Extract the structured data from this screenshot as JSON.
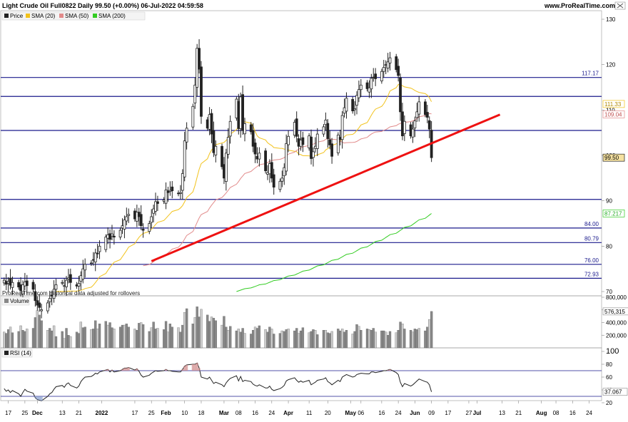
{
  "header": {
    "title": "Light Crude Oil Full0822 Daily 99.50 (+0.00%) 06-Jul-2022 04:59:58",
    "site": "www.ProRealTime.com"
  },
  "legend": {
    "price": "Price",
    "sma20": "SMA (20)",
    "sma50": "SMA (50)",
    "sma200": "SMA (200)"
  },
  "note": "ProRealTime.com Historical data adjusted for rollovers",
  "volume_label": "Volume",
  "rsi_label": "RSI (14)",
  "colors": {
    "candle": "#222222",
    "sma20": "#f2c21b",
    "sma50": "#e28b8b",
    "sma200": "#33cc22",
    "hline": "#1a1a8c",
    "trendline": "#ee1111",
    "volume": "#888888"
  },
  "chart_data": {
    "type": "candlestick",
    "price_axis": {
      "min": 70,
      "max": 130,
      "ticks": [
        70,
        80,
        90,
        100,
        110,
        120,
        130
      ]
    },
    "last_price": "99.50",
    "sma_values": {
      "sma20": "111.33",
      "sma50": "109.04",
      "sma200": "87.217"
    },
    "horizontal_levels": [
      {
        "value": 117.17,
        "label": "117.17"
      },
      {
        "value": 113.0,
        "label": ""
      },
      {
        "value": 105.5,
        "label": ""
      },
      {
        "value": 90.3,
        "label": ""
      },
      {
        "value": 84.0,
        "label": "84.00"
      },
      {
        "value": 80.79,
        "label": "80.79"
      },
      {
        "value": 76.0,
        "label": "76.00"
      },
      {
        "value": 72.93,
        "label": "72.93"
      }
    ],
    "trendline": {
      "from": {
        "x": "2022-01-25",
        "y": 76.7
      },
      "to": {
        "x": "2022-07-12",
        "y": 109.0
      }
    },
    "x_axis": {
      "start": "2021-11-13",
      "end": "2022-08-30",
      "ticks": [
        {
          "date": "2021-11-17",
          "label": "17"
        },
        {
          "date": "2021-11-25",
          "label": "25"
        },
        {
          "date": "2021-12-01",
          "label": "Dec"
        },
        {
          "date": "2021-12-13",
          "label": "13"
        },
        {
          "date": "2021-12-21",
          "label": "21"
        },
        {
          "date": "2022-01-01",
          "label": "2022"
        },
        {
          "date": "2022-01-17",
          "label": "17"
        },
        {
          "date": "2022-01-25",
          "label": "25"
        },
        {
          "date": "2022-02-01",
          "label": "Feb"
        },
        {
          "date": "2022-02-10",
          "label": "10"
        },
        {
          "date": "2022-02-18",
          "label": "18"
        },
        {
          "date": "2022-03-01",
          "label": "Mar"
        },
        {
          "date": "2022-03-08",
          "label": "08"
        },
        {
          "date": "2022-03-16",
          "label": "16"
        },
        {
          "date": "2022-03-24",
          "label": "24"
        },
        {
          "date": "2022-04-01",
          "label": "Apr"
        },
        {
          "date": "2022-04-11",
          "label": "11"
        },
        {
          "date": "2022-04-20",
          "label": "20"
        },
        {
          "date": "2022-05-01",
          "label": "May"
        },
        {
          "date": "2022-05-06",
          "label": "06"
        },
        {
          "date": "2022-05-16",
          "label": "16"
        },
        {
          "date": "2022-05-24",
          "label": "24"
        },
        {
          "date": "2022-06-01",
          "label": "Jun"
        },
        {
          "date": "2022-06-09",
          "label": "09"
        },
        {
          "date": "2022-06-17",
          "label": "17"
        },
        {
          "date": "2022-06-27",
          "label": "27"
        },
        {
          "date": "2022-07-01",
          "label": "Jul"
        },
        {
          "date": "2022-07-13",
          "label": "13"
        },
        {
          "date": "2022-07-21",
          "label": "21"
        },
        {
          "date": "2022-08-01",
          "label": "Aug"
        },
        {
          "date": "2022-08-08",
          "label": "08"
        },
        {
          "date": "2022-08-16",
          "label": "16"
        },
        {
          "date": "2022-08-24",
          "label": "24"
        }
      ]
    },
    "closes": [
      72.5,
      71.6,
      72.2,
      71.4,
      72.0,
      71.0,
      70.2,
      71.5,
      72.1,
      71.3,
      70.5,
      68.0,
      67.0,
      66.5,
      66.0,
      67.5,
      68.5,
      69.0,
      70.5,
      71.5,
      72.0,
      71.3,
      72.5,
      73.0,
      72.0,
      71.2,
      71.8,
      73.5,
      75.0,
      76.0,
      76.3,
      77.0,
      78.5,
      78.3,
      80.0,
      82.0,
      82.5,
      81.5,
      82.7,
      82.0,
      83.5,
      84.5,
      85.8,
      86.5,
      87.0,
      86.0,
      87.5,
      86.5,
      84.5,
      83.5,
      85.0,
      86.5,
      88.2,
      89.8,
      89.4,
      90.2,
      92.4,
      91.8,
      92.3,
      92.2,
      91.6,
      91.8,
      96.0,
      103.2,
      106.0,
      110.8,
      115.5,
      123.6,
      119.0,
      108.6,
      106.0,
      109.0,
      104.7,
      100.6,
      102.0,
      97.5,
      95.0,
      100.5,
      104.0,
      107.5,
      112.4,
      105.9,
      112.9,
      105.5,
      107.0,
      105.2,
      102.0,
      100.3,
      99.2,
      100.5,
      96.6,
      96.2,
      98.2,
      95.0,
      93.0,
      94.3,
      95.0,
      97.3,
      102.6,
      104.2,
      107.3,
      104.2,
      102.0,
      103.4,
      102.4,
      104.3,
      99.3,
      100.8,
      102.0,
      104.7,
      106.3,
      107.8,
      103.7,
      102.3,
      99.8,
      104.5,
      103.5,
      108.8,
      110.5,
      112.6,
      109.8,
      110.3,
      113.2,
      114.5,
      115.5,
      114.7,
      114.9,
      117.0,
      117.2,
      116.9,
      118.5,
      119.4,
      120.0,
      120.6,
      121.5,
      118.9,
      117.6,
      109.6,
      104.3,
      107.5,
      104.3,
      105.8,
      107.6,
      109.6,
      111.8,
      109.0,
      108.4,
      105.8,
      99.5
    ],
    "rsi_axis": {
      "min": 20,
      "max": 100,
      "ticks": [
        20,
        40,
        60,
        80,
        100
      ],
      "bands": [
        70,
        30
      ]
    },
    "rsi_last": "37.067",
    "rsi": [
      42,
      38,
      40,
      36,
      39,
      34,
      30,
      36,
      41,
      38,
      35,
      28,
      25,
      24,
      23,
      30,
      34,
      36,
      41,
      45,
      47,
      44,
      49,
      51,
      47,
      43,
      46,
      53,
      57,
      60,
      61,
      63,
      66,
      65,
      68,
      71,
      72,
      68,
      71,
      68,
      70,
      72,
      74,
      74,
      75,
      71,
      73,
      69,
      63,
      60,
      63,
      66,
      68,
      70,
      69,
      70,
      72,
      70,
      70,
      69,
      68,
      68,
      72,
      77,
      79,
      80,
      80,
      82,
      74,
      60,
      57,
      60,
      55,
      50,
      52,
      48,
      45,
      51,
      55,
      58,
      62,
      54,
      61,
      53,
      55,
      53,
      49,
      47,
      46,
      48,
      43,
      43,
      46,
      41,
      39,
      42,
      44,
      47,
      54,
      56,
      59,
      55,
      52,
      54,
      52,
      55,
      48,
      50,
      52,
      55,
      57,
      59,
      53,
      51,
      48,
      55,
      53,
      60,
      62,
      64,
      60,
      61,
      64,
      65,
      66,
      65,
      65,
      68,
      68,
      67,
      69,
      70,
      70,
      71,
      72,
      67,
      64,
      52,
      45,
      50,
      46,
      48,
      51,
      54,
      57,
      53,
      52,
      48,
      37
    ],
    "volume_axis": {
      "min": 0,
      "max": 800000,
      "ticks": [
        200000,
        400000,
        600000,
        800000
      ],
      "labels": [
        "200,000",
        "400,000",
        "600,000",
        "800,000"
      ]
    },
    "volume_last": "576,315",
    "volume": [
      250000,
      230000,
      290000,
      330000,
      240000,
      260000,
      350000,
      280000,
      260000,
      300000,
      310000,
      480000,
      590000,
      520000,
      430000,
      280000,
      310000,
      270000,
      350000,
      180000,
      260000,
      150000,
      310000,
      200000,
      180000,
      250000,
      230000,
      410000,
      320000,
      330000,
      290000,
      300000,
      430000,
      300000,
      380000,
      420000,
      360000,
      400000,
      320000,
      300000,
      330000,
      360000,
      360000,
      380000,
      330000,
      300000,
      280000,
      390000,
      400000,
      370000,
      260000,
      320000,
      410000,
      300000,
      310000,
      290000,
      420000,
      250000,
      380000,
      330000,
      320000,
      250000,
      360000,
      560000,
      620000,
      380000,
      480000,
      650000,
      490000,
      610000,
      520000,
      420000,
      490000,
      470000,
      430000,
      360000,
      500000,
      330000,
      280000,
      340000,
      270000,
      300000,
      250000,
      310000,
      230000,
      220000,
      280000,
      330000,
      310000,
      350000,
      290000,
      250000,
      330000,
      300000,
      220000,
      230000,
      270000,
      260000,
      290000,
      300000,
      270000,
      310000,
      230000,
      270000,
      320000,
      240000,
      260000,
      290000,
      280000,
      210000,
      280000,
      280000,
      240000,
      230000,
      260000,
      300000,
      270000,
      300000,
      250000,
      280000,
      220000,
      260000,
      370000,
      340000,
      280000,
      300000,
      290000,
      280000,
      310000,
      250000,
      270000,
      270000,
      250000,
      200000,
      260000,
      240000,
      280000,
      410000,
      380000,
      300000,
      280000,
      250000,
      300000,
      290000,
      310000,
      270000,
      330000,
      450000,
      576315
    ]
  }
}
